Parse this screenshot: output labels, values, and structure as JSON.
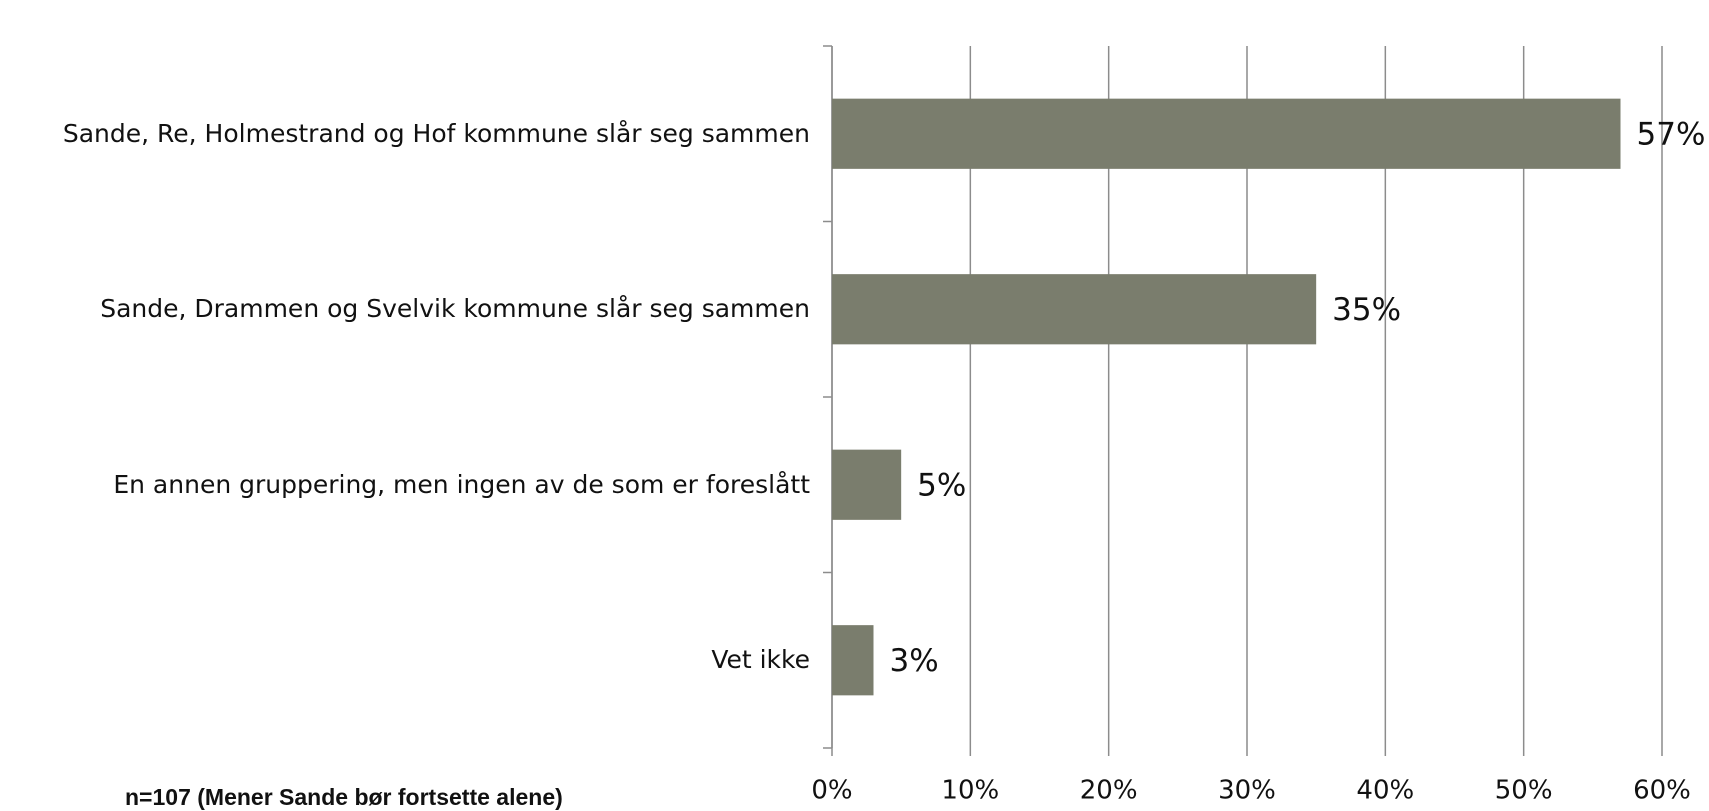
{
  "chart_data": {
    "type": "bar",
    "orientation": "horizontal",
    "categories": [
      "Sande, Re, Holmestrand og Hof kommune slår seg sammen",
      "Sande, Drammen og Svelvik kommune slår seg sammen",
      "En annen gruppering, men ingen av de som er foreslått",
      "Vet ikke"
    ],
    "values": [
      57,
      35,
      5,
      3
    ],
    "value_labels": [
      "57%",
      "35%",
      "5%",
      "3%"
    ],
    "color": "#7a7d6d",
    "xlim": [
      0,
      60
    ],
    "xticks": [
      {
        "value": 0,
        "label": "0%"
      },
      {
        "value": 10,
        "label": "10%"
      },
      {
        "value": 20,
        "label": "20%"
      },
      {
        "value": 30,
        "label": "30%"
      },
      {
        "value": 40,
        "label": "40%"
      },
      {
        "value": 50,
        "label": "50%"
      },
      {
        "value": 60,
        "label": "60%"
      }
    ],
    "grid": true,
    "note": "n=107 (Mener Sande bør fortsette alene)"
  }
}
